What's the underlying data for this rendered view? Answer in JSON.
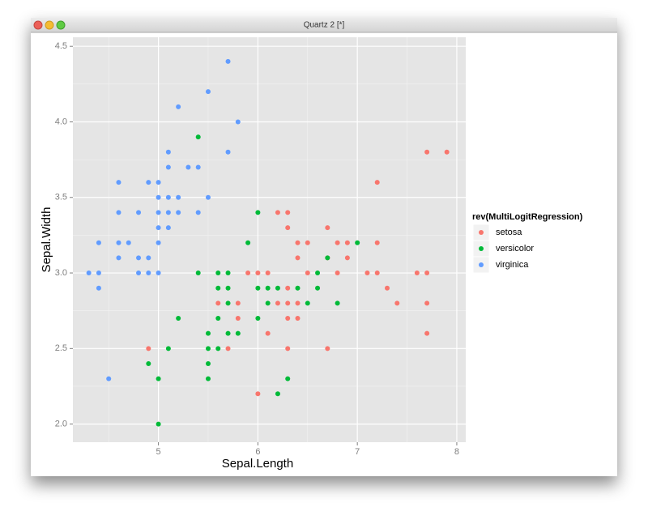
{
  "window": {
    "title": "Quartz 2 [*]"
  },
  "chart_data": {
    "type": "scatter",
    "x_label": "Sepal.Length",
    "y_label": "Sepal.Width",
    "legend_title": "rev(MultiLogitRegression)",
    "legend": "right",
    "grid": true,
    "xlim": [
      4.14,
      8.09
    ],
    "ylim": [
      1.88,
      4.56
    ],
    "xticks": [
      5,
      6,
      7,
      8
    ],
    "yticks": [
      {
        "value": 2,
        "label": "2.0"
      },
      2.5,
      {
        "value": 3,
        "label": "3.0"
      },
      3.5,
      {
        "value": 4,
        "label": "4.0"
      },
      4.5
    ],
    "series": [
      {
        "name": "setosa",
        "color": "#F8766D",
        "x": [
          7.7,
          7.9,
          7.2,
          6.2,
          6.3,
          6.3,
          6.7,
          6.4,
          6.5,
          6.8,
          6.9,
          7.2,
          6.4,
          6.7,
          6.9,
          5.9,
          6.0,
          6.1,
          6.5,
          6.8,
          7.1,
          7.2,
          7.6,
          7.7,
          7.3,
          6.3,
          5.6,
          5.8,
          6.2,
          6.3,
          6.4,
          7.4,
          7.7,
          5.8,
          6.3,
          6.4,
          6.1,
          7.7,
          4.9,
          5.7,
          6.3,
          6.7,
          6.0
        ],
        "values": [
          3.8,
          3.8,
          3.6,
          3.4,
          3.4,
          3.3,
          3.3,
          3.2,
          3.2,
          3.2,
          3.2,
          3.2,
          3.1,
          3.1,
          3.1,
          3.0,
          3.0,
          3.0,
          3.0,
          3.0,
          3.0,
          3.0,
          3.0,
          3.0,
          2.9,
          2.9,
          2.8,
          2.8,
          2.8,
          2.8,
          2.8,
          2.8,
          2.8,
          2.7,
          2.7,
          2.7,
          2.6,
          2.6,
          2.5,
          2.5,
          2.5,
          2.5,
          2.2
        ]
      },
      {
        "name": "versicolor",
        "color": "#00BA38",
        "x": [
          5.4,
          6.0,
          5.9,
          5.4,
          5.6,
          5.7,
          6.6,
          6.7,
          7.0,
          5.6,
          5.7,
          6.0,
          6.1,
          6.2,
          6.4,
          6.6,
          6.1,
          5.7,
          6.8,
          6.5,
          5.2,
          5.6,
          6.0,
          5.5,
          5.7,
          5.8,
          5.1,
          5.5,
          5.6,
          4.9,
          5.5,
          5.0,
          5.5,
          6.3,
          6.2,
          5.0
        ],
        "values": [
          3.9,
          3.4,
          3.2,
          3.0,
          3.0,
          3.0,
          3.0,
          3.1,
          3.2,
          2.9,
          2.9,
          2.9,
          2.9,
          2.9,
          2.9,
          2.9,
          2.8,
          2.8,
          2.8,
          2.8,
          2.7,
          2.7,
          2.7,
          2.6,
          2.6,
          2.6,
          2.5,
          2.5,
          2.5,
          2.4,
          2.4,
          2.3,
          2.3,
          2.3,
          2.2,
          2.0
        ]
      },
      {
        "name": "virginica",
        "color": "#619CFF",
        "x": [
          5.7,
          5.5,
          5.2,
          5.8,
          5.7,
          5.1,
          5.1,
          5.3,
          5.4,
          4.6,
          4.9,
          5.0,
          5.1,
          5.2,
          5.5,
          5.0,
          4.6,
          4.8,
          5.0,
          5.1,
          5.2,
          5.4,
          5.0,
          5.1,
          4.4,
          4.6,
          4.7,
          5.0,
          4.6,
          4.8,
          4.9,
          4.3,
          4.4,
          4.8,
          4.9,
          5.0,
          4.4,
          4.5
        ],
        "values": [
          4.4,
          4.2,
          4.1,
          4.0,
          3.8,
          3.8,
          3.7,
          3.7,
          3.7,
          3.6,
          3.6,
          3.6,
          3.5,
          3.5,
          3.5,
          3.5,
          3.4,
          3.4,
          3.4,
          3.4,
          3.4,
          3.4,
          3.3,
          3.3,
          3.2,
          3.2,
          3.2,
          3.2,
          3.1,
          3.1,
          3.1,
          3.0,
          3.0,
          3.0,
          3.0,
          3.0,
          2.9,
          2.3
        ]
      }
    ]
  }
}
